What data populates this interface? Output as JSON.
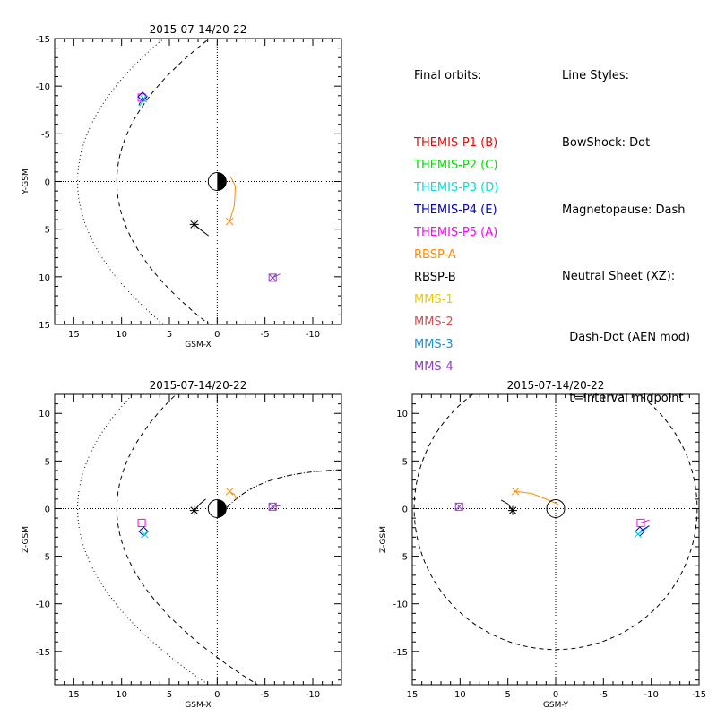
{
  "legend": {
    "orbits_title": "Final orbits:",
    "items": [
      {
        "label": "THEMIS-P1 (B)",
        "color": "#ff0000"
      },
      {
        "label": "THEMIS-P2 (C)",
        "color": "#00e000"
      },
      {
        "label": "THEMIS-P3 (D)",
        "color": "#00e0e0"
      },
      {
        "label": "THEMIS-P4 (E)",
        "color": "#0000c8"
      },
      {
        "label": "THEMIS-P5 (A)",
        "color": "#ff00ff"
      },
      {
        "label": "RBSP-A",
        "color": "#ff8c00"
      },
      {
        "label": "RBSP-B",
        "color": "#000000"
      },
      {
        "label": "MMS-1",
        "color": "#f0c800"
      },
      {
        "label": "MMS-2",
        "color": "#d05050"
      },
      {
        "label": "MMS-3",
        "color": "#2090d0"
      },
      {
        "label": "MMS-4",
        "color": "#9040c0"
      }
    ],
    "styles_title": "Line Styles:",
    "style_lines": [
      "BowShock: Dot",
      "Magnetopause: Dash",
      "Neutral Sheet (XZ):",
      "  Dash-Dot (AEN mod)",
      "  t=interval midpoint"
    ]
  },
  "chart_data": [
    {
      "type": "scatter",
      "title": "2015-07-14/20-22",
      "xlabel": "GSM-X",
      "ylabel": "Y-GSM",
      "xlim": [
        17,
        -13
      ],
      "ylim": [
        15,
        -15
      ],
      "xticks": [
        15,
        10,
        5,
        0,
        -5,
        -10
      ],
      "yticks": [
        -15,
        -10,
        -5,
        0,
        5,
        10,
        15
      ],
      "grid": "dotted zero lines",
      "series": [
        {
          "name": "THEMIS-P5 (A)",
          "x": [
            7.9
          ],
          "y": [
            -8.8
          ]
        },
        {
          "name": "THEMIS-P4 (E)",
          "x": [
            7.8
          ],
          "y": [
            -8.9
          ]
        },
        {
          "name": "THEMIS-P3 (D)",
          "x": [
            7.7
          ],
          "y": [
            -8.7
          ]
        },
        {
          "name": "RBSP-A",
          "x": [
            -1.3
          ],
          "y": [
            4.2
          ]
        },
        {
          "name": "RBSP-B",
          "x": [
            2.4
          ],
          "y": [
            4.5
          ]
        },
        {
          "name": "MMS-4",
          "x": [
            -5.8
          ],
          "y": [
            10.1
          ]
        }
      ]
    },
    {
      "type": "scatter",
      "title": "2015-07-14/20-22",
      "xlabel": "GSM-X",
      "ylabel": "Z-GSM",
      "xlim": [
        17,
        -13
      ],
      "ylim": [
        -18.5,
        12
      ],
      "xticks": [
        15,
        10,
        5,
        0,
        -5,
        -10
      ],
      "yticks": [
        -15,
        -10,
        -5,
        0,
        5,
        10
      ],
      "grid": "dotted zero lines",
      "series": [
        {
          "name": "THEMIS-P5 (A)",
          "x": [
            7.9
          ],
          "y": [
            -1.5
          ]
        },
        {
          "name": "THEMIS-P4 (E)",
          "x": [
            7.7
          ],
          "y": [
            -2.4
          ]
        },
        {
          "name": "THEMIS-P3 (D)",
          "x": [
            7.6
          ],
          "y": [
            -2.7
          ]
        },
        {
          "name": "RBSP-A",
          "x": [
            -1.3
          ],
          "y": [
            1.8
          ]
        },
        {
          "name": "RBSP-B",
          "x": [
            2.4
          ],
          "y": [
            -0.2
          ]
        },
        {
          "name": "MMS-4",
          "x": [
            -5.8
          ],
          "y": [
            0.2
          ]
        }
      ]
    },
    {
      "type": "scatter",
      "title": "2015-07-14/20-22",
      "xlabel": "GSM-Y",
      "ylabel": "Z-GSM",
      "xlim": [
        15,
        -15
      ],
      "ylim": [
        -18.5,
        12
      ],
      "xticks": [
        15,
        10,
        5,
        0,
        -5,
        -10,
        -15
      ],
      "yticks": [
        -15,
        -10,
        -5,
        0,
        5,
        10
      ],
      "grid": "dotted zero lines",
      "series": [
        {
          "name": "THEMIS-P5 (A)",
          "x": [
            -8.9
          ],
          "y": [
            -1.5
          ]
        },
        {
          "name": "THEMIS-P4 (E)",
          "x": [
            -8.8
          ],
          "y": [
            -2.4
          ]
        },
        {
          "name": "THEMIS-P3 (D)",
          "x": [
            -8.6
          ],
          "y": [
            -2.7
          ]
        },
        {
          "name": "RBSP-A",
          "x": [
            4.2
          ],
          "y": [
            1.8
          ]
        },
        {
          "name": "RBSP-B",
          "x": [
            4.5
          ],
          "y": [
            -0.2
          ]
        },
        {
          "name": "MMS-4",
          "x": [
            10.1
          ],
          "y": [
            0.2
          ]
        }
      ]
    }
  ]
}
